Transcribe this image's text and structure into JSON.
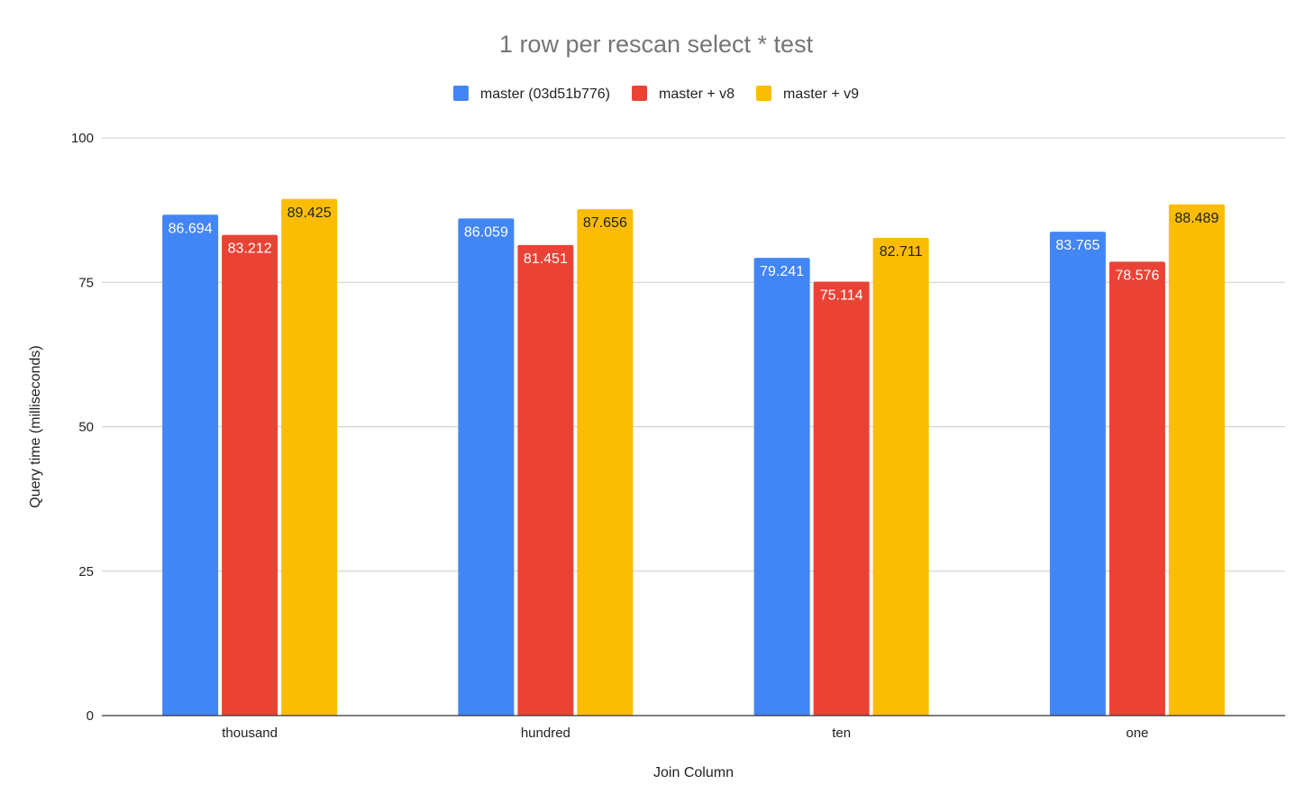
{
  "chart_data": {
    "type": "bar",
    "title": "1 row per rescan select * test",
    "xlabel": "Join Column",
    "ylabel": "Query time (milliseconds)",
    "categories": [
      "thousand",
      "hundred",
      "ten",
      "one"
    ],
    "series": [
      {
        "name": "master (03d51b776)",
        "color": "#4285f4",
        "label_color": "#ffffff",
        "values": [
          86.694,
          86.059,
          79.241,
          83.765
        ]
      },
      {
        "name": "master + v8",
        "color": "#ea4335",
        "label_color": "#ffffff",
        "values": [
          83.212,
          81.451,
          75.114,
          78.576
        ]
      },
      {
        "name": "master + v9",
        "color": "#fbbc04",
        "label_color": "#222222",
        "values": [
          89.425,
          87.656,
          82.711,
          88.489
        ]
      }
    ],
    "ylim": [
      0,
      100
    ],
    "yticks": [
      0,
      25,
      50,
      75,
      100
    ],
    "grid": true,
    "legend_position": "top-center"
  }
}
